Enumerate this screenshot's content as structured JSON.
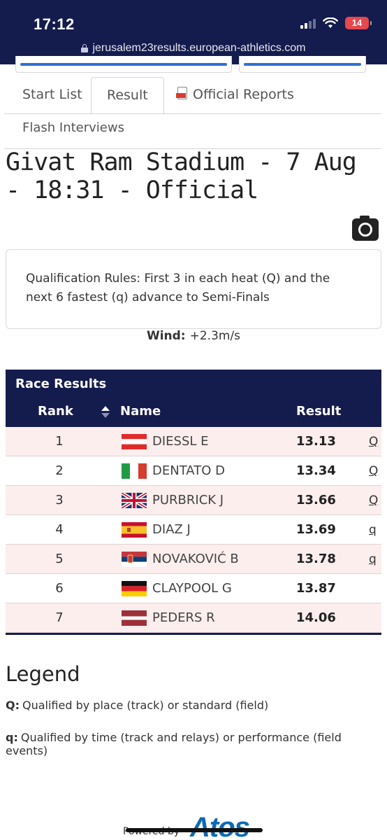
{
  "status_bar": {
    "time": "17:12",
    "battery_level": "14",
    "battery_color": "#e5484d",
    "signal_bars_filled": 2,
    "signal_bars_total": 4
  },
  "browser": {
    "url": "jerusalem23results.european-athletics.com"
  },
  "tabs": {
    "start_list": "Start List",
    "result": "Result",
    "official_reports": "Official Reports",
    "flash_interviews": "Flash Interviews",
    "active": "Result"
  },
  "heading": {
    "title": "Givat Ram Stadium - 7 Aug - 18:31 - Official"
  },
  "rules": {
    "text": "Qualification Rules: First 3 in each heat (Q) and the next 6 fastest (q) advance to Semi-Finals"
  },
  "wind": {
    "label": "Wind:",
    "value": "+2.3m/s"
  },
  "results_table": {
    "caption": "Race Results",
    "columns": {
      "rank": "Rank",
      "name": "Name",
      "result": "Result"
    },
    "rows": [
      {
        "rank": "1",
        "country_flag": "austria",
        "name": "DIESSL E",
        "result": "13.13",
        "qual": "Q"
      },
      {
        "rank": "2",
        "country_flag": "italy",
        "name": "DENTATO D",
        "result": "13.34",
        "qual": "Q"
      },
      {
        "rank": "3",
        "country_flag": "great-britain",
        "name": "PURBRICK J",
        "result": "13.66",
        "qual": "Q"
      },
      {
        "rank": "4",
        "country_flag": "spain",
        "name": "DIAZ J",
        "result": "13.69",
        "qual": "q"
      },
      {
        "rank": "5",
        "country_flag": "serbia",
        "name": "NOVAKOVIĆ B",
        "result": "13.78",
        "qual": "q"
      },
      {
        "rank": "6",
        "country_flag": "germany",
        "name": "CLAYPOOL G",
        "result": "13.87",
        "qual": ""
      },
      {
        "rank": "7",
        "country_flag": "latvia",
        "name": "PEDERS R",
        "result": "14.06",
        "qual": ""
      }
    ]
  },
  "legend": {
    "title": "Legend",
    "items": [
      {
        "key": "Q:",
        "text": "Qualified by place (track) or standard (field)"
      },
      {
        "key": "q:",
        "text": "Qualified by time (track and relays) or performance (field events)"
      }
    ]
  },
  "footer": {
    "powered_by": "Powered by",
    "brand": "Atos"
  },
  "colors": {
    "navy": "#141b4d",
    "row_alt": "#fbeeed",
    "brand_blue": "#0a6ab5"
  }
}
